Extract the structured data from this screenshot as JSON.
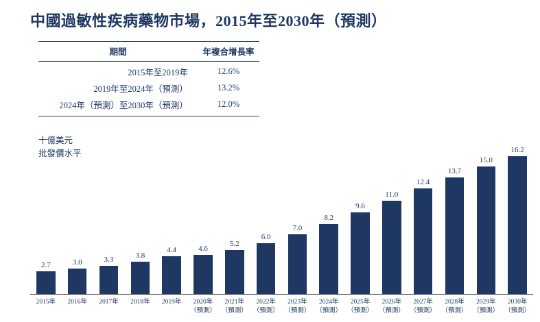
{
  "title": "中國過敏性疾病藥物市場，2015年至2030年（預測）",
  "table": {
    "headers": [
      "期間",
      "年複合增長率"
    ],
    "rows": [
      {
        "period": "2015年至2019年",
        "cagr": "12.6%"
      },
      {
        "period": "2019年至2024年（預測）",
        "cagr": "13.2%"
      },
      {
        "period": "2024年（預測）至2030年（預測）",
        "cagr": "12.0%"
      }
    ]
  },
  "chart_data": {
    "type": "bar",
    "title": "中國過敏性疾病藥物市場，2015年至2030年（預測）",
    "ylabel_lines": [
      "十億美元",
      "批發價水平"
    ],
    "xlabel": "",
    "ylim": [
      0,
      17
    ],
    "grid": false,
    "legend": "none",
    "bar_color": "#1f3863",
    "categories": [
      "2015年",
      "2016年",
      "2017年",
      "2018年",
      "2019年",
      "2020年",
      "2021年",
      "2022年",
      "2023年",
      "2024年",
      "2025年",
      "2026年",
      "2027年",
      "2028年",
      "2029年",
      "2030年"
    ],
    "category_sublabels": [
      "",
      "",
      "",
      "",
      "",
      "（預測）",
      "（預測）",
      "（預測）",
      "（預測）",
      "（預測）",
      "（預測）",
      "（預測）",
      "（預測）",
      "（預測）",
      "（預測）",
      "（預測）"
    ],
    "values": [
      2.7,
      3.0,
      3.3,
      3.8,
      4.4,
      4.6,
      5.2,
      6.0,
      7.0,
      8.2,
      9.6,
      11.0,
      12.4,
      13.7,
      15.0,
      16.2
    ]
  },
  "colors": {
    "text": "#1f3863",
    "bar": "#1f3863",
    "axis": "#3c3c3c",
    "background": "#ffffff"
  }
}
